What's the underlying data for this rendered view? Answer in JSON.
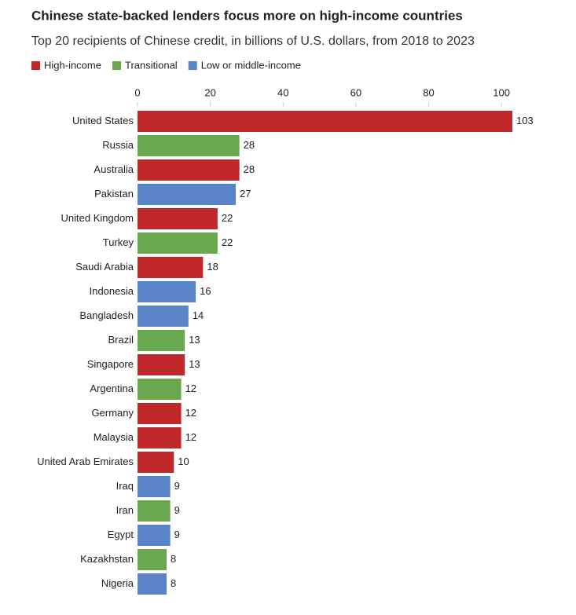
{
  "chart_data": {
    "type": "bar",
    "orientation": "horizontal",
    "title": "Chinese state-backed lenders focus more on high-income countries",
    "subtitle": "Top 20 recipients of Chinese credit, in billions of U.S. dollars, from 2018 to 2023",
    "categories": [
      "United States",
      "Russia",
      "Australia",
      "Pakistan",
      "United Kingdom",
      "Turkey",
      "Saudi Arabia",
      "Indonesia",
      "Bangladesh",
      "Brazil",
      "Singapore",
      "Argentina",
      "Germany",
      "Malaysia",
      "United Arab Emirates",
      "Iraq",
      "Iran",
      "Egypt",
      "Kazakhstan",
      "Nigeria"
    ],
    "series": [
      {
        "name": "High-income",
        "color": "#c0282b",
        "values": [
          103,
          null,
          28,
          null,
          22,
          null,
          18,
          null,
          null,
          null,
          13,
          null,
          12,
          12,
          10,
          null,
          null,
          null,
          null,
          null
        ]
      },
      {
        "name": "Transitional",
        "color": "#6aa84f",
        "values": [
          null,
          28,
          null,
          null,
          null,
          22,
          null,
          null,
          null,
          13,
          null,
          12,
          null,
          null,
          null,
          null,
          9,
          null,
          8,
          null
        ]
      },
      {
        "name": "Low or middle-income",
        "color": "#5a84c8",
        "values": [
          null,
          null,
          null,
          27,
          null,
          null,
          null,
          16,
          14,
          null,
          null,
          null,
          null,
          null,
          null,
          9,
          null,
          9,
          null,
          8
        ]
      }
    ],
    "xlim": [
      0,
      103
    ],
    "xticks": [
      0,
      20,
      40,
      60,
      80,
      100
    ],
    "grid": false
  }
}
